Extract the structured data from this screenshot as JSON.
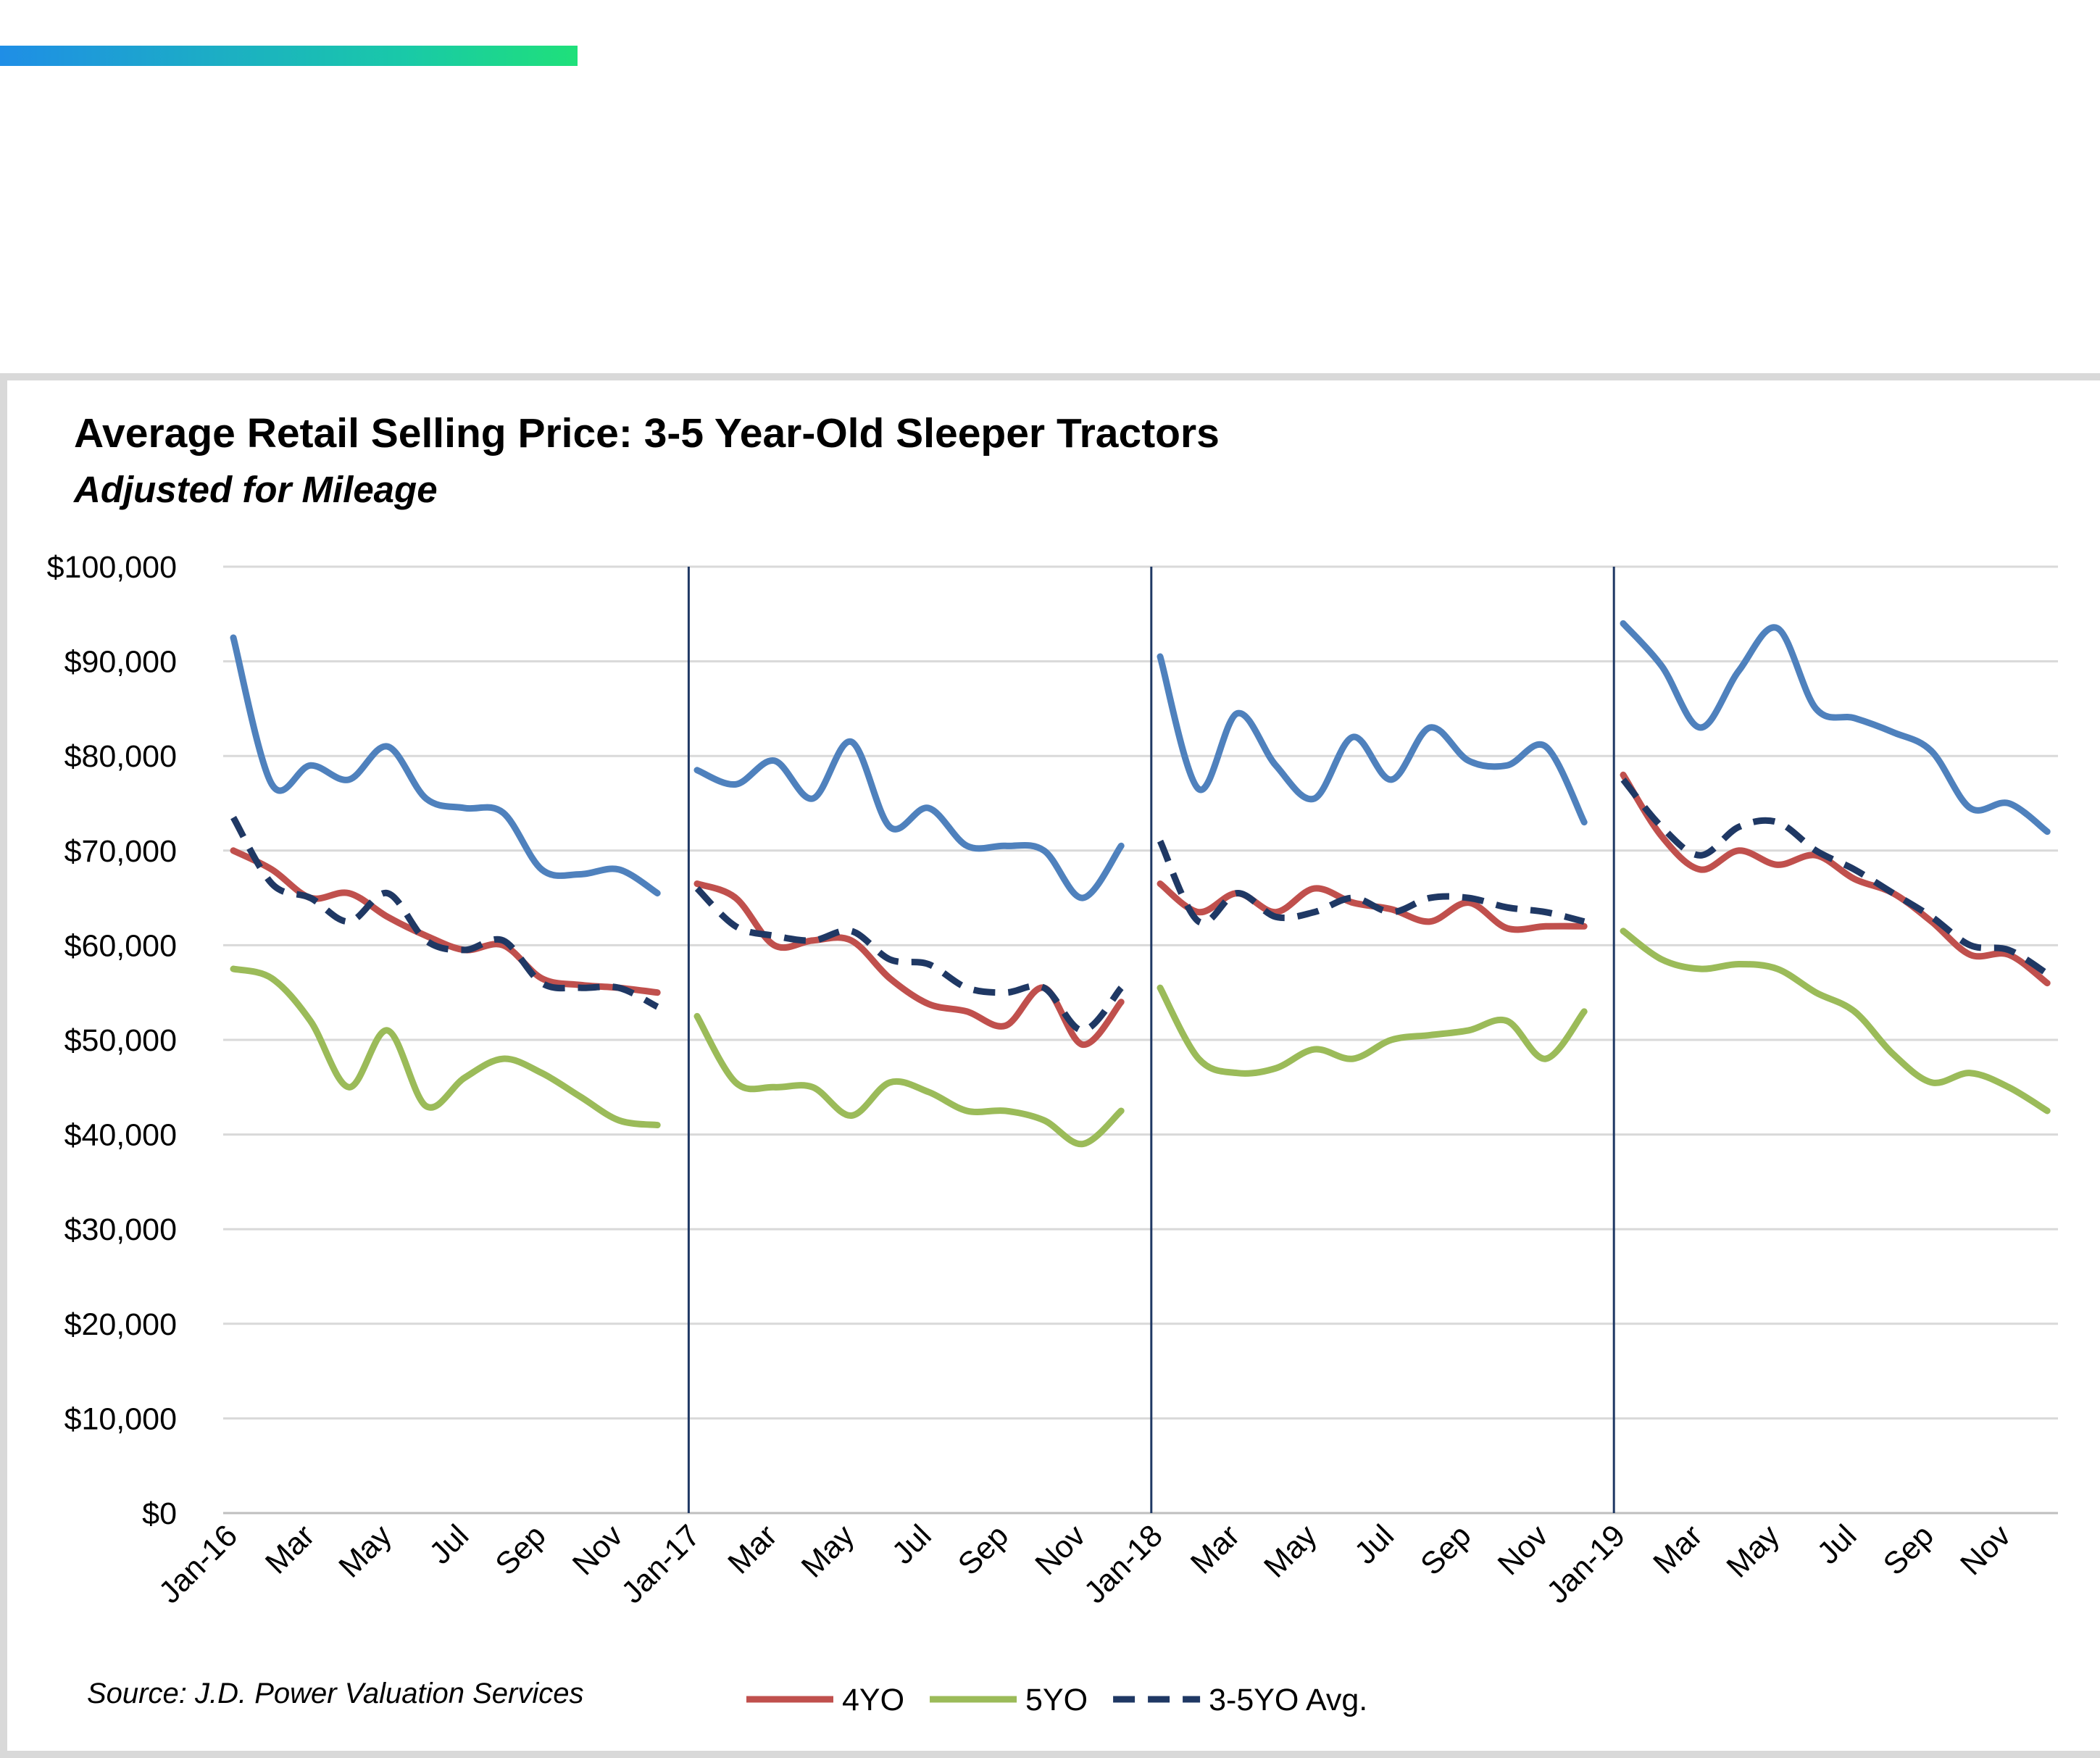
{
  "chart_data": {
    "type": "line",
    "title": "Average Retail Selling Price: 3-5 Year-Old  Sleeper Tractors",
    "subtitle": "Adjusted for Mileage",
    "source": "Source: J.D. Power Valuation Services",
    "ylim": [
      0,
      100000
    ],
    "y_ticks": [
      "$0",
      "$10,000",
      "$20,000",
      "$30,000",
      "$40,000",
      "$50,000",
      "$60,000",
      "$70,000",
      "$80,000",
      "$90,000",
      "$100,000"
    ],
    "x_tick_labels": [
      "Jan-16",
      "Mar",
      "May",
      "Jul",
      "Sep",
      "Nov",
      "Jan-17",
      "Mar",
      "May",
      "Jul",
      "Sep",
      "Nov",
      "Jan-18",
      "Mar",
      "May",
      "Jul",
      "Sep",
      "Nov",
      "Jan-19",
      "Mar",
      "May",
      "Jul",
      "Sep",
      "Nov"
    ],
    "grid": true,
    "legend_position": "bottom",
    "year_dividers": [
      "Jan-17",
      "Jan-18",
      "Jan-19"
    ],
    "series": [
      {
        "name": "",
        "color": "#4f81bd",
        "style": "solid",
        "segments": [
          [
            92500,
            77000,
            79000,
            77500,
            81000,
            75500,
            74500,
            74000,
            68000,
            67500,
            68000,
            65500
          ],
          [
            78500,
            77000,
            79500,
            75500,
            81500,
            72500,
            74500,
            70500,
            70500,
            70000,
            65000,
            70500
          ],
          [
            90500,
            76500,
            84500,
            79000,
            75500,
            82000,
            77500,
            83000,
            79500,
            79000,
            81000,
            73000
          ],
          [
            94000,
            89500,
            83000,
            89000,
            93500,
            85000,
            84000,
            82500,
            80500,
            74500,
            75000,
            72000
          ]
        ]
      },
      {
        "name": "4YO",
        "color": "#c0504d",
        "style": "solid",
        "segments": [
          [
            70000,
            68000,
            65000,
            65500,
            63000,
            61000,
            59500,
            60000,
            56500,
            55800,
            55500,
            55000
          ],
          [
            66500,
            65000,
            60000,
            60500,
            60500,
            56500,
            53800,
            53000,
            51500,
            55500,
            49500,
            54000
          ],
          [
            66500,
            63500,
            65500,
            63500,
            66000,
            64500,
            63800,
            62500,
            64500,
            61800,
            62000,
            62000
          ],
          [
            78000,
            71500,
            68000,
            70000,
            68500,
            69500,
            67000,
            65500,
            62500,
            59000,
            59000,
            56000
          ]
        ]
      },
      {
        "name": "5YO",
        "color": "#9bbb59",
        "style": "solid",
        "segments": [
          [
            57500,
            56500,
            52000,
            45000,
            51000,
            43000,
            46000,
            48000,
            46500,
            44000,
            41500,
            41000
          ],
          [
            52500,
            45500,
            45000,
            45000,
            42000,
            45500,
            44500,
            42500,
            42500,
            41500,
            39000,
            42500
          ],
          [
            55500,
            48000,
            46500,
            47000,
            49000,
            48000,
            50000,
            50500,
            51000,
            52000,
            48000,
            53000
          ],
          [
            61500,
            58500,
            57500,
            58000,
            57500,
            55000,
            53000,
            48500,
            45500,
            46500,
            45000,
            42500
          ]
        ]
      },
      {
        "name": "3-5YO Avg.",
        "color": "#1f3864",
        "style": "dashed",
        "segments": [
          [
            73500,
            66500,
            65000,
            62500,
            65500,
            60500,
            59500,
            60500,
            56000,
            55500,
            55500,
            53500
          ],
          [
            66000,
            62000,
            61000,
            60500,
            61500,
            58500,
            58000,
            55500,
            55000,
            55500,
            51000,
            55500
          ],
          [
            71000,
            62500,
            65500,
            63000,
            63500,
            65000,
            63500,
            65000,
            65000,
            64000,
            63500,
            62500
          ],
          [
            77500,
            72500,
            69500,
            72500,
            73000,
            70000,
            68000,
            65500,
            63000,
            60000,
            59500,
            57000
          ]
        ]
      }
    ]
  }
}
